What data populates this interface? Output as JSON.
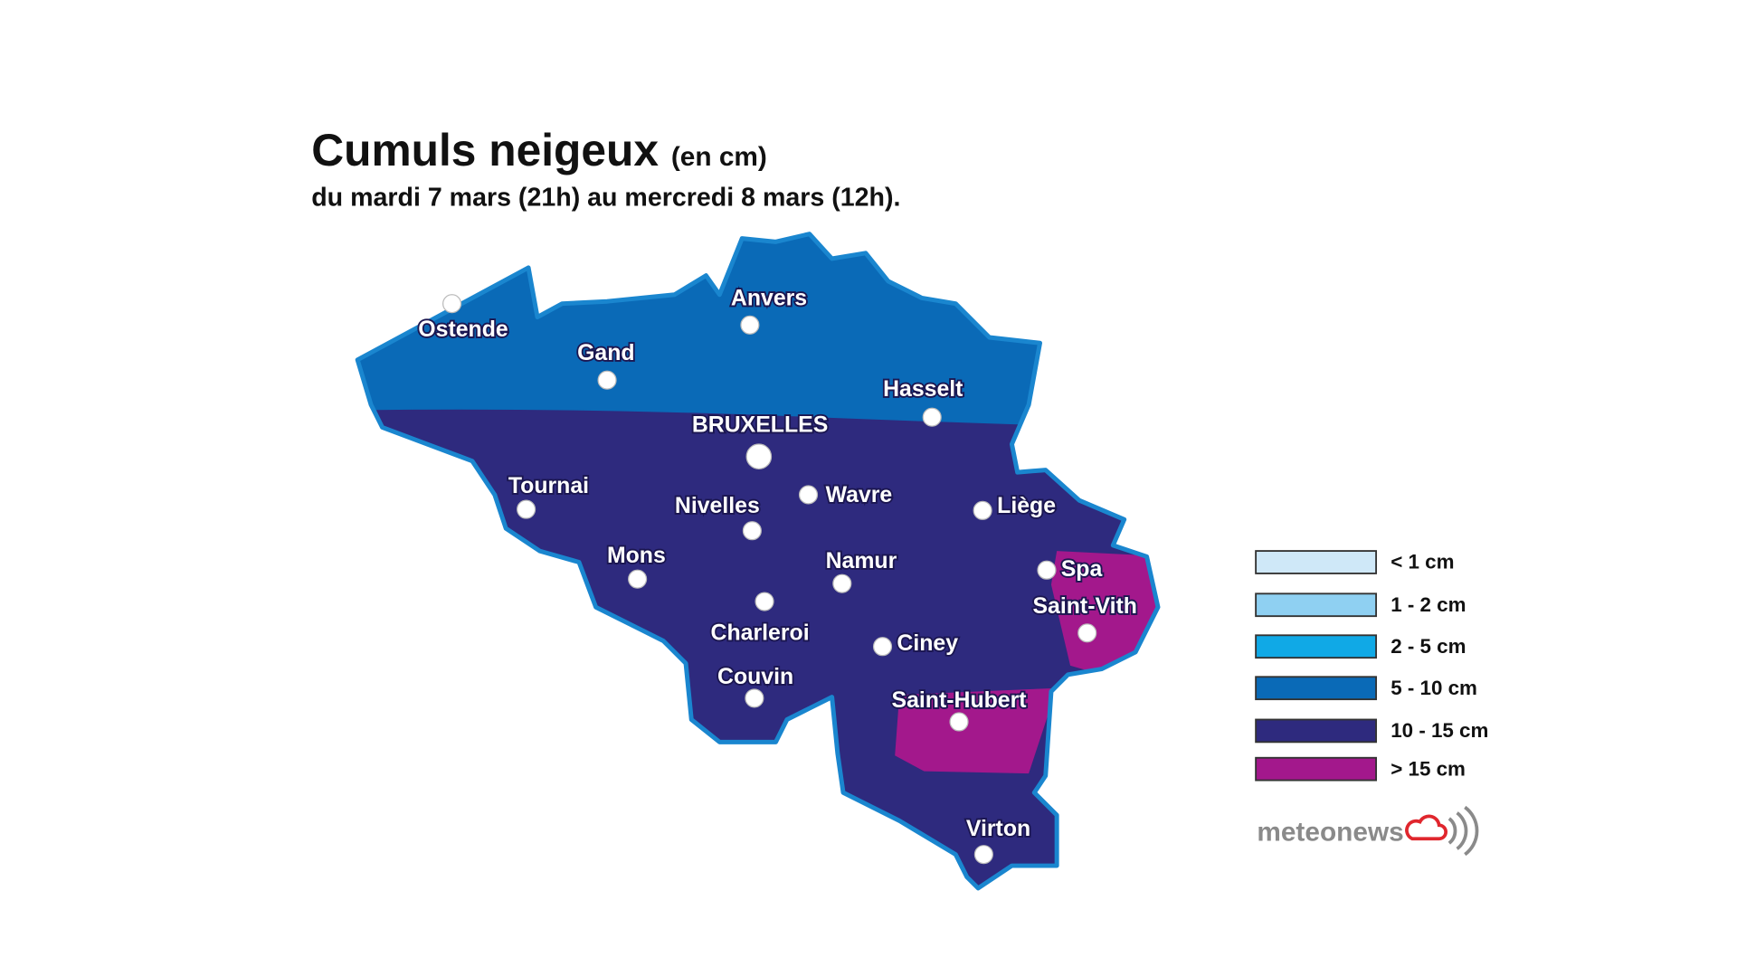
{
  "header": {
    "title": "Cumuls neigeux",
    "unit": "(en cm)",
    "subtitle": "du mardi 7 mars (21h) au mercredi 8 mars (12h)."
  },
  "map": {
    "regions": [
      {
        "legend_index": 4
      },
      {
        "legend_index": 3
      },
      {
        "legend_index": 5
      }
    ],
    "cities": [
      "Ostende",
      "Gand",
      "Anvers",
      "Hasselt",
      "BRUXELLES",
      "Tournai",
      "Nivelles",
      "Wavre",
      "Liège",
      "Mons",
      "Namur",
      "Charleroi",
      "Spa",
      "Saint-Vith",
      "Ciney",
      "Couvin",
      "Saint-Hubert",
      "Virton"
    ]
  },
  "legend": [
    {
      "label": "< 1 cm",
      "color": "#cfe8f8"
    },
    {
      "label": "1 - 2 cm",
      "color": "#8fd0f2"
    },
    {
      "label": "2 - 5 cm",
      "color": "#10a9e6"
    },
    {
      "label": "5 - 10 cm",
      "color": "#0a6ab7"
    },
    {
      "label": "10 - 15 cm",
      "color": "#2e2a7e"
    },
    {
      "label": "> 15 cm",
      "color": "#a3188c"
    }
  ],
  "logo": "meteonews"
}
